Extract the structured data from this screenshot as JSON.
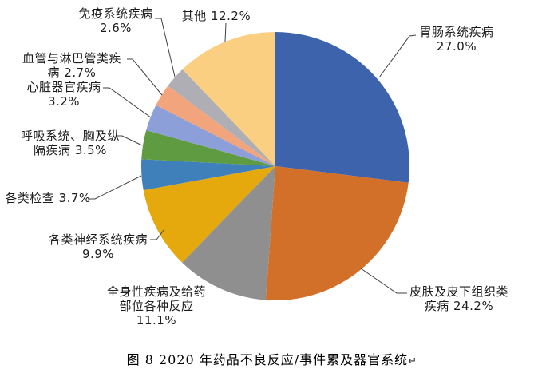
{
  "caption": {
    "text": "图 8  2020 年药品不良反应/事件累及器官系统",
    "return_mark": "↵"
  },
  "colors": {
    "leader_line": "#404040",
    "label_text": "#1d1d1d",
    "background": "#ffffff"
  },
  "chart_data": {
    "type": "pie",
    "title": "图 8  2020 年药品不良反应/事件累及器官系统",
    "legend_position": "none",
    "start_angle_deg": 0,
    "direction": "clockwise",
    "units": "%",
    "slices": [
      {
        "name": "胃肠系统疾病",
        "value": 27.0,
        "color": "#3D63AD",
        "label_lines": [
          "胃肠系统疾病",
          "27.0%"
        ]
      },
      {
        "name": "皮肤及皮下组织类疾病",
        "value": 24.2,
        "color": "#D2702A",
        "label_lines": [
          "皮肤及皮下组织类",
          "疾病 24.2%"
        ]
      },
      {
        "name": "全身性疾病及给药部位各种反应",
        "value": 11.1,
        "color": "#8F8F8F",
        "label_lines": [
          "全身性疾病及给药",
          "部位各种反应",
          "11.1%"
        ]
      },
      {
        "name": "各类神经系统疾病",
        "value": 9.9,
        "color": "#E5A90E",
        "label_lines": [
          "各类神经系统疾病",
          "9.9%"
        ]
      },
      {
        "name": "各类检查",
        "value": 3.7,
        "color": "#3F80BA",
        "label_lines": [
          "各类检查 3.7%"
        ]
      },
      {
        "name": "呼吸系统、胸及纵隔疾病",
        "value": 3.5,
        "color": "#5F9C41",
        "label_lines": [
          "呼吸系统、胸及纵",
          "隔疾病 3.5%"
        ]
      },
      {
        "name": "心脏器官疾病",
        "value": 3.2,
        "color": "#8D9FD8",
        "label_lines": [
          "心脏器官疾病",
          "3.2%"
        ]
      },
      {
        "name": "血管与淋巴管类疾病",
        "value": 2.7,
        "color": "#F2A57C",
        "label_lines": [
          "血管与淋巴管类疾",
          "病 2.7%"
        ]
      },
      {
        "name": "免疫系统疾病",
        "value": 2.6,
        "color": "#AEAEB4",
        "label_lines": [
          "免疫系统疾病",
          "2.6%"
        ]
      },
      {
        "name": "其他",
        "value": 12.2,
        "color": "#FBCF82",
        "label_lines": [
          "其他 12.2%"
        ]
      }
    ]
  }
}
